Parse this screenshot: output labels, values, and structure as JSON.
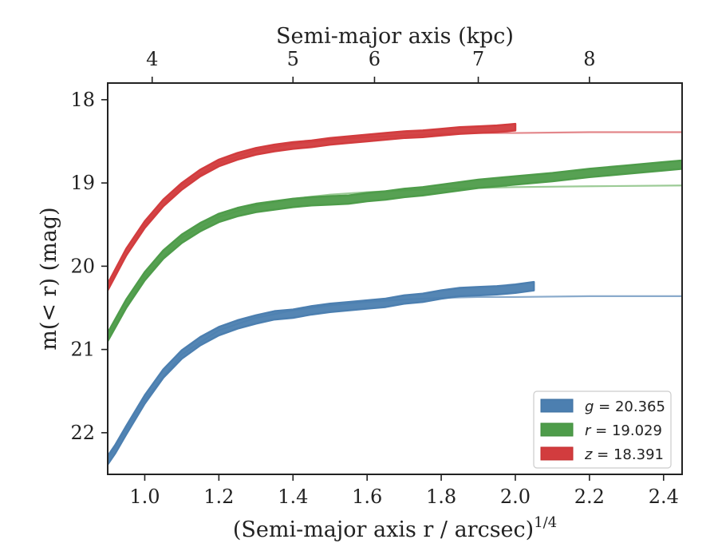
{
  "chart_data": {
    "type": "line",
    "xlabel": "(Semi-major axis r / arcsec)",
    "xlabel_superscript": "1/4",
    "top_xlabel": "Semi-major axis (kpc)",
    "ylabel": "m(< r) (mag)",
    "xlim": [
      0.9,
      2.45
    ],
    "ylim": [
      22.5,
      17.8
    ],
    "y_inverted": true,
    "xticks": [
      1.0,
      1.2,
      1.4,
      1.6,
      1.8,
      2.0,
      2.2,
      2.4
    ],
    "xtick_labels": [
      "1.0",
      "1.2",
      "1.4",
      "1.6",
      "1.8",
      "2.0",
      "2.2",
      "2.4"
    ],
    "yticks": [
      18,
      19,
      20,
      21,
      22
    ],
    "ytick_labels": [
      "18",
      "19",
      "20",
      "21",
      "22"
    ],
    "top_xticks_kpc": [
      4,
      5,
      6,
      7,
      8
    ],
    "top_xtick_labels": [
      "4",
      "5",
      "6",
      "7",
      "8"
    ],
    "top_xtick_positions": [
      1.02,
      1.4,
      1.62,
      1.9,
      2.2
    ],
    "grid": false,
    "legend_position": "bottom-right",
    "series": [
      {
        "name": "g = 20.365",
        "legend_var": "g",
        "legend_value": "20.365",
        "color": "#4c7fb0",
        "fit_color": "#8aabcc",
        "x": [
          0.9,
          0.92,
          0.95,
          1.0,
          1.05,
          1.1,
          1.15,
          1.2,
          1.25,
          1.3,
          1.35,
          1.4,
          1.45,
          1.5,
          1.55,
          1.6,
          1.65,
          1.7,
          1.75,
          1.8,
          1.85,
          1.9,
          1.95,
          2.0,
          2.05
        ],
        "y": [
          22.33,
          22.2,
          21.97,
          21.6,
          21.29,
          21.06,
          20.9,
          20.78,
          20.7,
          20.64,
          20.59,
          20.57,
          20.53,
          20.5,
          20.48,
          20.46,
          20.44,
          20.4,
          20.38,
          20.34,
          20.31,
          20.3,
          20.29,
          20.27,
          20.24
        ],
        "band": 0.05,
        "fit_x": [
          0.9,
          1.0,
          1.1,
          1.2,
          1.3,
          1.4,
          1.5,
          1.6,
          1.7,
          1.8,
          1.9,
          2.0,
          2.2,
          2.45
        ],
        "fit_y": [
          22.33,
          21.6,
          21.06,
          20.77,
          20.62,
          20.53,
          20.47,
          20.43,
          20.4,
          20.38,
          20.37,
          20.37,
          20.36,
          20.36
        ]
      },
      {
        "name": "r = 19.029",
        "legend_var": "r",
        "legend_value": "19.029",
        "color": "#4e9c4a",
        "fit_color": "#9ccb96",
        "x": [
          0.9,
          0.95,
          1.0,
          1.05,
          1.1,
          1.15,
          1.2,
          1.25,
          1.3,
          1.35,
          1.4,
          1.45,
          1.5,
          1.55,
          1.6,
          1.65,
          1.7,
          1.75,
          1.8,
          1.85,
          1.9,
          2.0,
          2.1,
          2.2,
          2.3,
          2.4,
          2.45
        ],
        "y": [
          20.85,
          20.45,
          20.12,
          19.86,
          19.67,
          19.53,
          19.42,
          19.35,
          19.3,
          19.27,
          19.24,
          19.22,
          19.21,
          19.2,
          19.17,
          19.15,
          19.12,
          19.1,
          19.07,
          19.04,
          19.01,
          18.97,
          18.93,
          18.88,
          18.84,
          18.8,
          18.78
        ],
        "band": 0.05,
        "fit_x": [
          0.9,
          1.0,
          1.1,
          1.2,
          1.3,
          1.4,
          1.5,
          1.6,
          1.7,
          1.8,
          1.9,
          2.0,
          2.2,
          2.45
        ],
        "fit_y": [
          20.85,
          20.12,
          19.66,
          19.41,
          19.27,
          19.19,
          19.14,
          19.11,
          19.09,
          19.07,
          19.06,
          19.05,
          19.04,
          19.03
        ]
      },
      {
        "name": "z = 18.391",
        "legend_var": "z",
        "legend_value": "18.391",
        "color": "#d23c3e",
        "fit_color": "#e3878b",
        "x": [
          0.9,
          0.95,
          1.0,
          1.05,
          1.1,
          1.15,
          1.2,
          1.25,
          1.3,
          1.35,
          1.4,
          1.45,
          1.5,
          1.55,
          1.6,
          1.65,
          1.7,
          1.75,
          1.8,
          1.85,
          1.9,
          1.95,
          2.0
        ],
        "y": [
          20.25,
          19.83,
          19.5,
          19.24,
          19.04,
          18.88,
          18.76,
          18.68,
          18.62,
          18.58,
          18.55,
          18.53,
          18.5,
          18.48,
          18.46,
          18.44,
          18.42,
          18.41,
          18.39,
          18.37,
          18.36,
          18.35,
          18.33
        ],
        "band": 0.04,
        "fit_x": [
          0.9,
          1.0,
          1.1,
          1.2,
          1.3,
          1.4,
          1.5,
          1.6,
          1.7,
          1.8,
          1.9,
          2.0,
          2.2,
          2.45
        ],
        "fit_y": [
          20.25,
          19.5,
          19.03,
          18.76,
          18.61,
          18.53,
          18.48,
          18.45,
          18.43,
          18.41,
          18.4,
          18.4,
          18.39,
          18.39
        ]
      }
    ]
  }
}
